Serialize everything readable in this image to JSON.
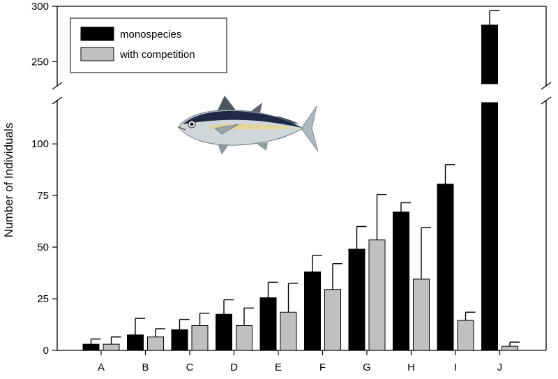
{
  "chart_data": {
    "type": "bar",
    "ylabel": "Number of Individuals",
    "xlabel": "",
    "categories": [
      "A",
      "B",
      "C",
      "D",
      "E",
      "F",
      "G",
      "H",
      "I",
      "J"
    ],
    "series": [
      {
        "name": "monospecies",
        "color": "#000000",
        "values": [
          3,
          7.5,
          10,
          17.5,
          25.5,
          38,
          49,
          67,
          80.5,
          283
        ],
        "errors": [
          2.5,
          8,
          5,
          7,
          7.5,
          8,
          11,
          4.5,
          9.5,
          13
        ]
      },
      {
        "name": "with competition",
        "color": "#c0c0c0",
        "values": [
          3,
          6.5,
          12,
          12,
          18.5,
          29.5,
          53.5,
          34.5,
          14.5,
          2
        ],
        "errors": [
          3.5,
          4,
          6,
          8.5,
          14,
          12.5,
          22,
          25,
          4,
          2
        ]
      }
    ],
    "y_axis": {
      "lower_segment": {
        "range": [
          0,
          120
        ],
        "ticks": [
          0,
          25,
          50,
          75,
          100
        ]
      },
      "upper_segment": {
        "range": [
          230,
          300
        ],
        "ticks": [
          250,
          300
        ]
      },
      "broken": true
    },
    "legend": {
      "placement": "top-left"
    },
    "grid": false,
    "illustration": "tuna-fish-icon"
  }
}
